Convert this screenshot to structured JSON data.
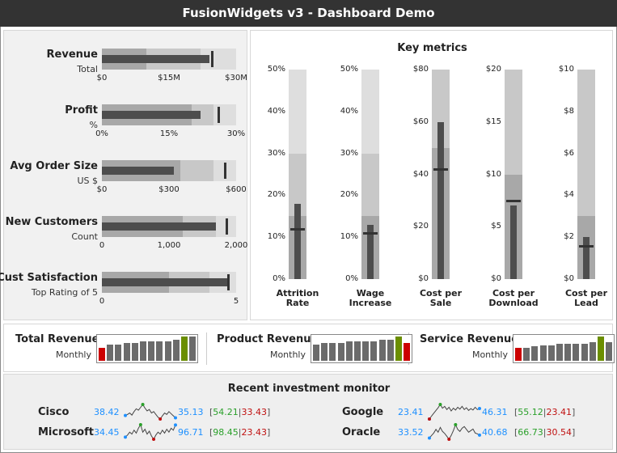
{
  "title": "FusionWidgets v3 - Dashboard Demo",
  "colors": {
    "band_dark": "#a8a8a8",
    "band_mid": "#c8c8c8",
    "band_light": "#dedede",
    "bar": "#4d4d4d",
    "spark_bar": "#6b6b6b",
    "spark_low": "#cc0000",
    "spark_high": "#6b8e00",
    "spark_line": "#444444",
    "open_close": "#1e90ff",
    "high_point": "#2aa02a",
    "low_point": "#c01010"
  },
  "bullets": [
    {
      "label": "Revenue",
      "sub": "Total",
      "ticks": [
        "$0",
        "$15M",
        "$30M"
      ],
      "max": 30,
      "bands": [
        10,
        22,
        30
      ],
      "value": 24,
      "target": 24.5
    },
    {
      "label": "Profit",
      "sub": "%",
      "ticks": [
        "0%",
        "15%",
        "30%"
      ],
      "max": 30,
      "bands": [
        20,
        25,
        30
      ],
      "value": 22,
      "target": 26
    },
    {
      "label": "Avg Order Size",
      "sub": "US $",
      "ticks": [
        "$0",
        "$300",
        "$600"
      ],
      "max": 600,
      "bands": [
        350,
        500,
        600
      ],
      "value": 320,
      "target": 550
    },
    {
      "label": "New Customers",
      "sub": "Count",
      "ticks": [
        "0",
        "1,000",
        "2,000"
      ],
      "max": 2000,
      "bands": [
        1200,
        1700,
        2000
      ],
      "value": 1700,
      "target": 1850
    },
    {
      "label": "Cust Satisfaction",
      "sub": "Top Rating of 5",
      "ticks": [
        "0",
        "5"
      ],
      "max": 5,
      "bands": [
        2.5,
        4,
        5
      ],
      "value": 4.7,
      "target": 4.7
    }
  ],
  "key_metrics": {
    "title": "Key metrics",
    "charts": [
      {
        "label_line1": "Attrition",
        "label_line2": "Rate",
        "ticks": [
          "0%",
          "10%",
          "20%",
          "30%",
          "40%",
          "50%"
        ],
        "max": 50,
        "bands": [
          15,
          30,
          50
        ],
        "value": 18,
        "target": 12
      },
      {
        "label_line1": "Wage",
        "label_line2": "Increase",
        "ticks": [
          "0%",
          "10%",
          "20%",
          "30%",
          "40%",
          "50%"
        ],
        "max": 50,
        "bands": [
          15,
          30,
          50
        ],
        "value": 13,
        "target": 11
      },
      {
        "label_line1": "Cost per",
        "label_line2": "Sale",
        "ticks": [
          "$0",
          "$20",
          "$40",
          "$60",
          "$80"
        ],
        "max": 80,
        "bands": [
          50,
          80,
          80
        ],
        "value": 60,
        "target": 42
      },
      {
        "label_line1": "Cost per",
        "label_line2": "Download",
        "ticks": [
          "$0",
          "$5",
          "$10",
          "$15",
          "$20"
        ],
        "max": 20,
        "bands": [
          10,
          20,
          20
        ],
        "value": 7,
        "target": 7.5
      },
      {
        "label_line1": "Cost per",
        "label_line2": "Lead",
        "ticks": [
          "$0",
          "$2",
          "$4",
          "$6",
          "$8",
          "$10"
        ],
        "max": 10,
        "bands": [
          3,
          10,
          10
        ],
        "value": 2,
        "target": 1.6
      }
    ]
  },
  "sparkcolumns": [
    {
      "title": "Total Revenue",
      "sub": "Monthly",
      "values": [
        4,
        5,
        5,
        5.5,
        5.5,
        6,
        6,
        6,
        6,
        6.5,
        7.5,
        7.5
      ],
      "low_index": 0,
      "high_index": 10
    },
    {
      "title": "Product Revenue",
      "sub": "Monthly",
      "values": [
        5,
        5.5,
        5.5,
        5.5,
        6,
        6,
        6,
        6,
        6.5,
        6.5,
        7.5,
        5.5
      ],
      "low_index": 11,
      "high_index": 10
    },
    {
      "title": "Service Revenue",
      "sub": "Monthly",
      "values": [
        4.5,
        4.5,
        5,
        5.5,
        5.5,
        6,
        6,
        6,
        6,
        6.5,
        8.5,
        6.5
      ],
      "low_index": 0,
      "high_index": 10
    }
  ],
  "investment": {
    "title": "Recent investment monitor",
    "items": [
      {
        "name": "Cisco",
        "open": "38.42",
        "close": "35.13",
        "high": "54.21",
        "low": "33.43",
        "series": [
          38.4,
          40,
          42,
          39,
          44,
          48,
          46,
          50,
          54.2,
          49,
          45,
          47,
          42,
          44,
          40,
          36,
          33.4,
          38,
          42,
          40,
          44,
          41,
          38,
          35.1
        ]
      },
      {
        "name": "Google",
        "open": "23.41",
        "close": "46.31",
        "high": "55.12",
        "low": "23.41",
        "series": [
          23.4,
          30,
          36,
          42,
          48,
          55.1,
          47,
          51,
          44,
          49,
          41,
          47,
          43,
          49,
          45,
          51,
          44,
          48,
          42,
          46,
          43,
          49,
          44,
          46.3
        ]
      },
      {
        "name": "Microsoft",
        "open": "34.45",
        "close": "96.71",
        "high": "98.45",
        "low": "23.43",
        "series": [
          34.4,
          45,
          60,
          50,
          70,
          55,
          80,
          98.4,
          60,
          75,
          50,
          65,
          40,
          23.4,
          45,
          60,
          50,
          70,
          55,
          75,
          60,
          80,
          70,
          96.7
        ]
      },
      {
        "name": "Oracle",
        "open": "33.52",
        "close": "40.68",
        "high": "66.73",
        "low": "30.54",
        "series": [
          33.5,
          40,
          46,
          55,
          48,
          60,
          50,
          45,
          38,
          30.5,
          40,
          52,
          66.7,
          55,
          50,
          58,
          62,
          55,
          48,
          52,
          56,
          46,
          44,
          40.7
        ]
      }
    ]
  }
}
